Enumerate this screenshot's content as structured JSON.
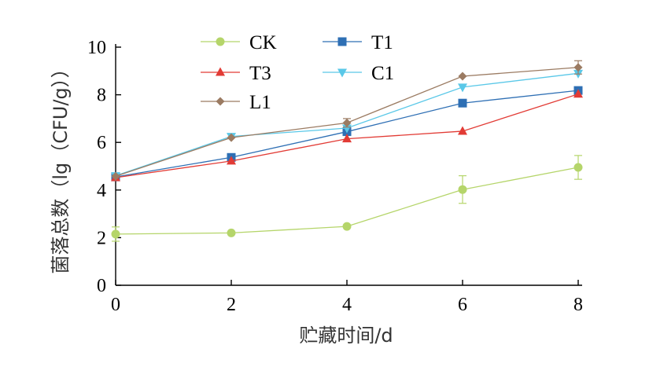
{
  "chart_data": {
    "type": "line",
    "xlabel": "贮藏时间/d",
    "ylabel": "菌落总数（lg（CFU/g））",
    "x": [
      0,
      2,
      4,
      6,
      8
    ],
    "xticks": [
      "0",
      "2",
      "4",
      "6",
      "8"
    ],
    "yticks": [
      "0",
      "2",
      "4",
      "6",
      "8",
      "10"
    ],
    "xlim": [
      0,
      8
    ],
    "ylim": [
      0,
      10
    ],
    "grid": false,
    "legend_position": "top-left",
    "series": [
      {
        "name": "CK",
        "color": "#b5d56a",
        "marker": "circle",
        "values": [
          2.15,
          2.2,
          2.47,
          4.02,
          4.95
        ],
        "errors": [
          0.3,
          0.0,
          0.0,
          0.58,
          0.5
        ]
      },
      {
        "name": "T1",
        "color": "#2e6fb4",
        "marker": "square",
        "values": [
          4.55,
          5.37,
          6.45,
          7.65,
          8.18
        ],
        "errors": [
          0.0,
          0.0,
          0.0,
          0.0,
          0.0
        ]
      },
      {
        "name": "T3",
        "color": "#e23b35",
        "marker": "triangle-up",
        "values": [
          4.52,
          5.22,
          6.15,
          6.47,
          8.03
        ],
        "errors": [
          0.0,
          0.0,
          0.0,
          0.0,
          0.0
        ]
      },
      {
        "name": "C1",
        "color": "#5ac8e8",
        "marker": "triangle-down",
        "values": [
          4.6,
          6.25,
          6.6,
          8.32,
          8.9
        ],
        "errors": [
          0.0,
          0.0,
          0.0,
          0.0,
          0.0
        ]
      },
      {
        "name": "L1",
        "color": "#9b7b62",
        "marker": "diamond",
        "values": [
          4.58,
          6.2,
          6.82,
          8.78,
          9.15
        ],
        "errors": [
          0.0,
          0.0,
          0.18,
          0.0,
          0.28
        ]
      }
    ]
  }
}
